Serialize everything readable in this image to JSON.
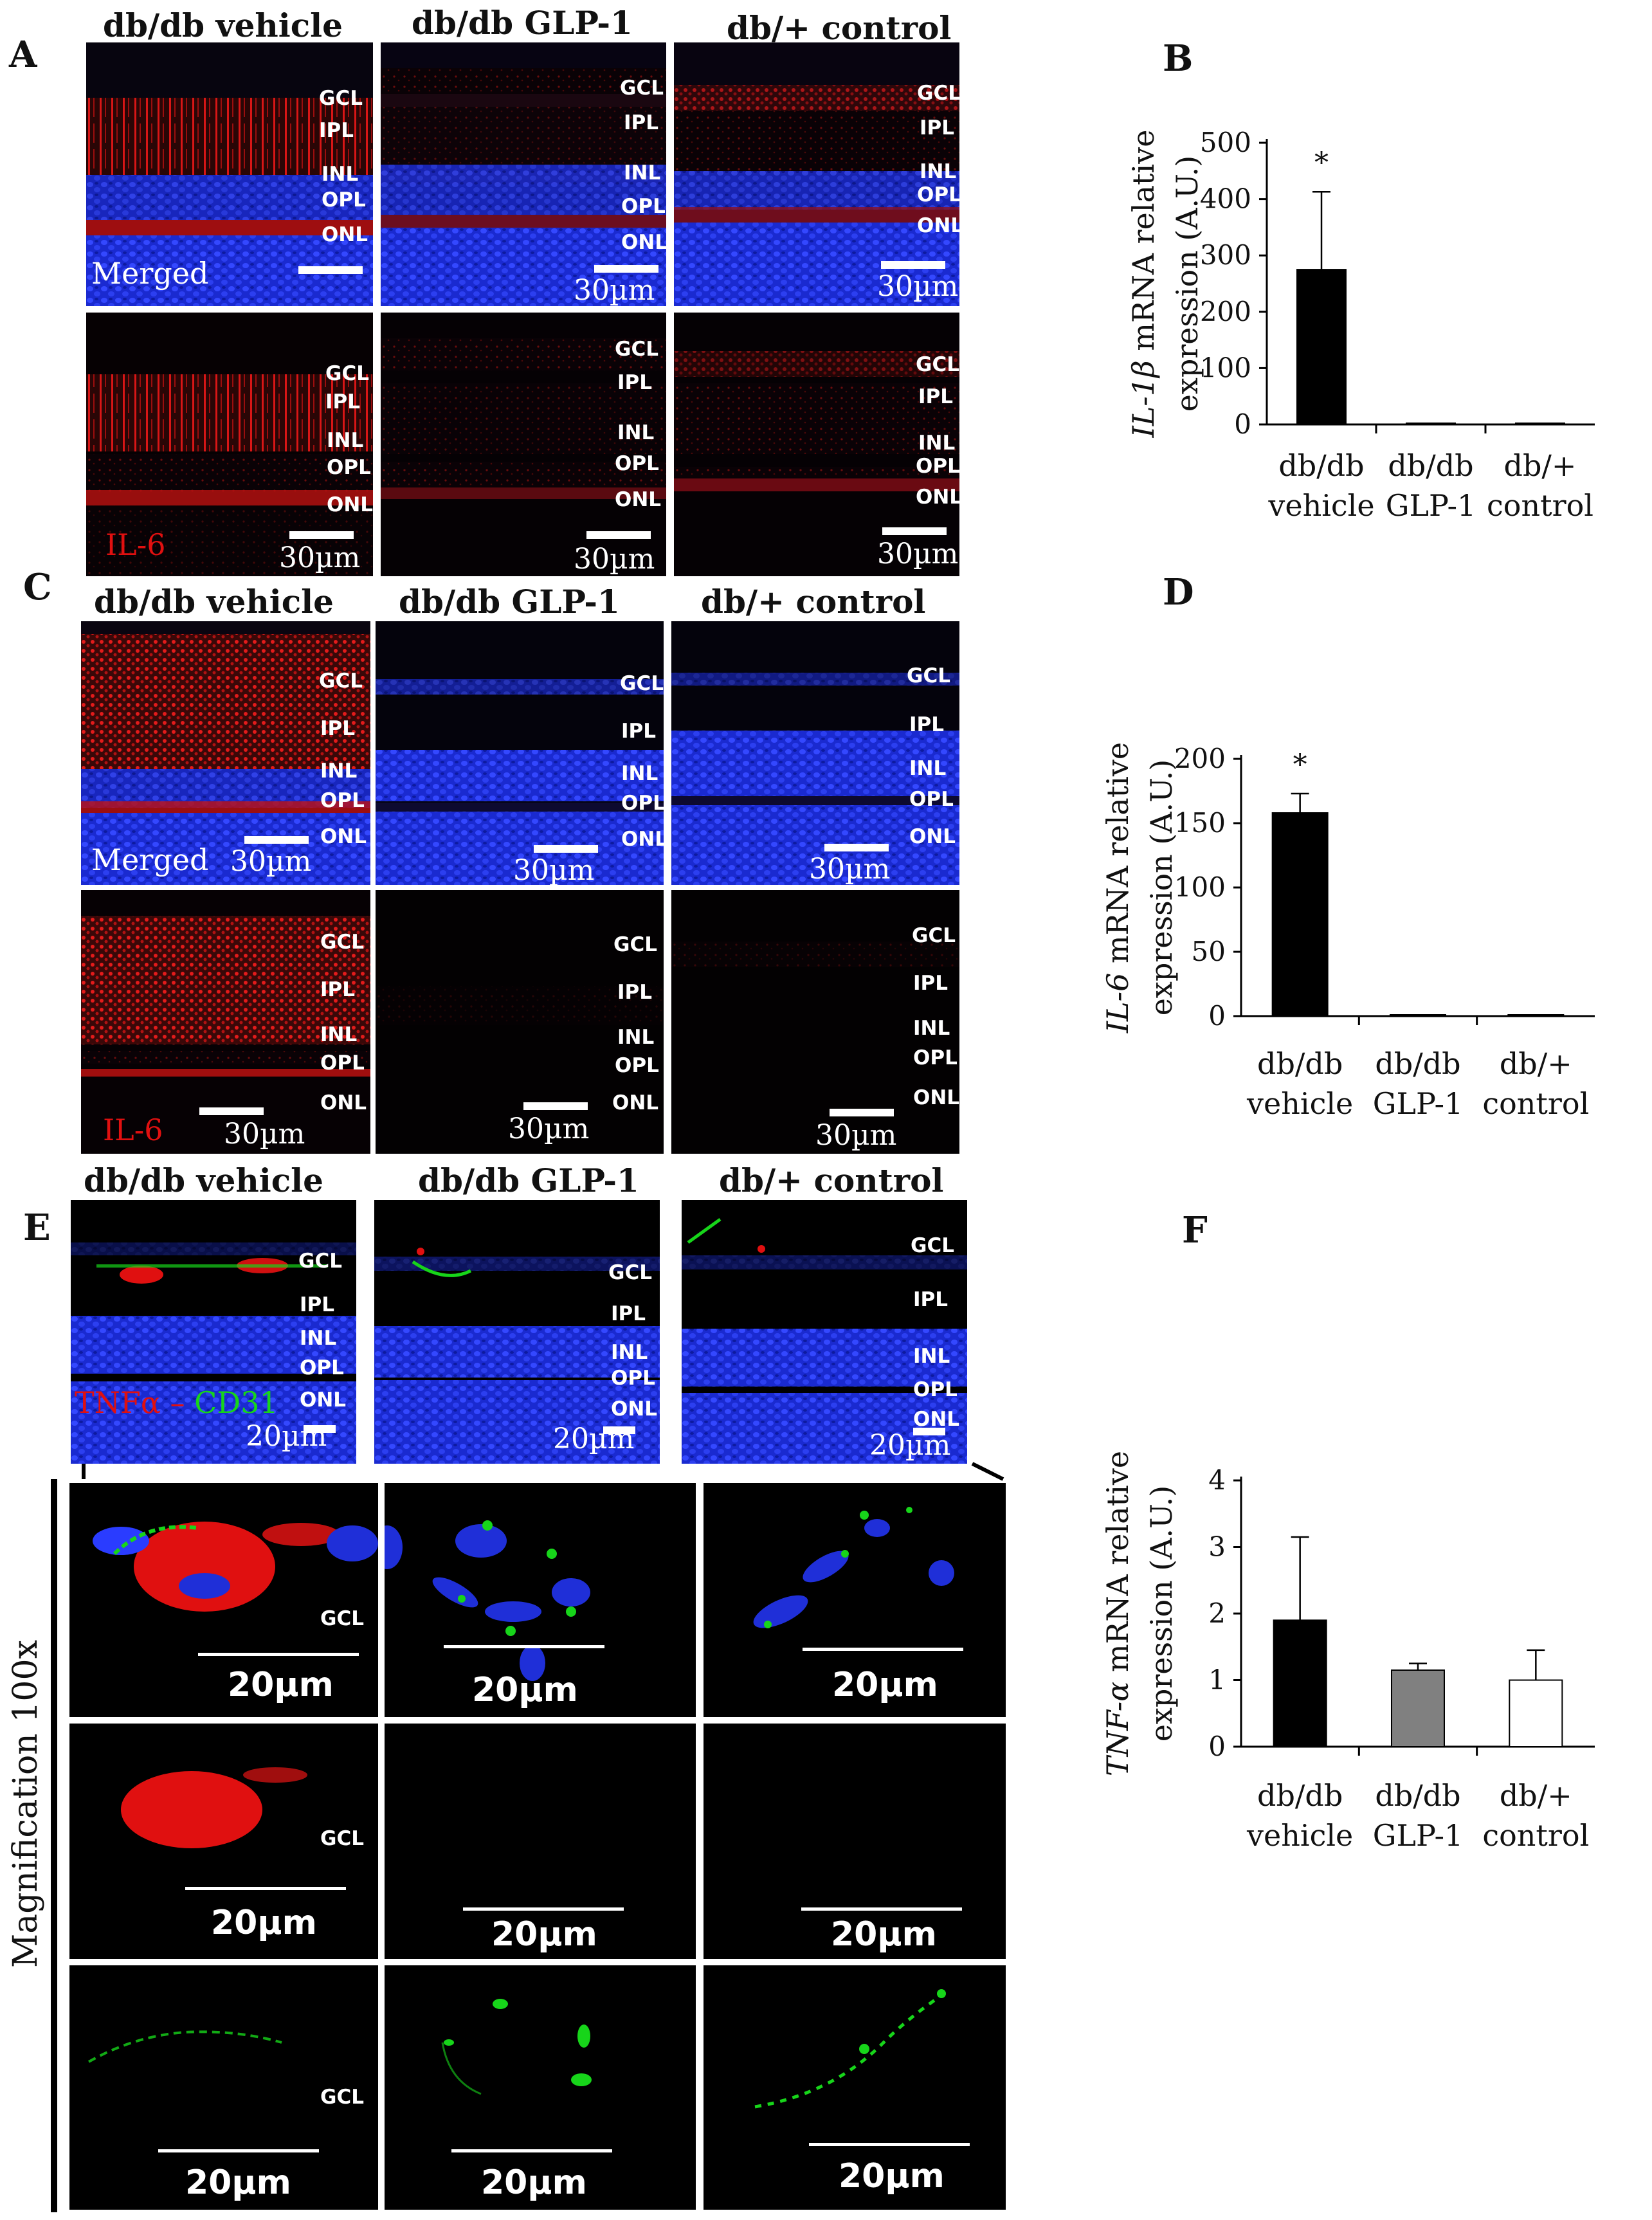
{
  "panels": {
    "A": "A",
    "B": "B",
    "C": "C",
    "D": "D",
    "E": "E",
    "F": "F"
  },
  "columns": {
    "vehicle": "db/db vehicle",
    "glp1": "db/db GLP-1",
    "control": "db/+ control"
  },
  "layers": {
    "gcl": "GCL",
    "ipl": "IPL",
    "inl": "INL",
    "opl": "OPL",
    "onl": "ONL"
  },
  "stain": {
    "merged": "Merged",
    "il6": "IL-6",
    "tnfa": "TNFα",
    "dash": " – ",
    "cd31": "CD31"
  },
  "scale": {
    "s30": "30µm",
    "s20": "20µm"
  },
  "magnification": "Magnification 100x",
  "colors": {
    "red": "#e01010",
    "green": "#17d51a",
    "blue": "#1f2fd8",
    "bar_vehicle": "#000000",
    "bar_glp1": "#808080",
    "bar_control": "#ffffff"
  },
  "chart_data": [
    {
      "id": "B",
      "type": "bar",
      "ylabel_gene": "IL-1β",
      "ylabel_rest": " mRNA relative",
      "ylabel_line2": "expression (A.U.)",
      "categories": [
        [
          "db/db",
          "vehicle"
        ],
        [
          "db/db",
          "GLP-1"
        ],
        [
          "db/+",
          "control"
        ]
      ],
      "values": [
        275,
        1,
        1
      ],
      "errors": [
        138,
        0,
        0
      ],
      "significance": [
        "*",
        "",
        ""
      ],
      "yticks": [
        0,
        100,
        200,
        300,
        400,
        500
      ],
      "ylim": [
        0,
        500
      ]
    },
    {
      "id": "D",
      "type": "bar",
      "ylabel_gene": "IL-6",
      "ylabel_rest": " mRNA relative",
      "ylabel_line2": "expression (A.U.)",
      "categories": [
        [
          "db/db",
          "vehicle"
        ],
        [
          "db/db",
          "GLP-1"
        ],
        [
          "db/+",
          "control"
        ]
      ],
      "values": [
        158,
        1,
        1
      ],
      "errors": [
        15,
        0,
        0
      ],
      "significance": [
        "*",
        "",
        ""
      ],
      "yticks": [
        0,
        50,
        100,
        150,
        200
      ],
      "ylim": [
        0,
        200
      ]
    },
    {
      "id": "F",
      "type": "bar",
      "ylabel_gene": "TNF-α",
      "ylabel_rest": " mRNA relative",
      "ylabel_line2": "expression (A.U.)",
      "categories": [
        [
          "db/db",
          "vehicle"
        ],
        [
          "db/db",
          "GLP-1"
        ],
        [
          "db/+",
          "control"
        ]
      ],
      "values": [
        1.9,
        1.15,
        1.0
      ],
      "errors": [
        1.25,
        0.1,
        0.45
      ],
      "significance": [
        "",
        "",
        ""
      ],
      "yticks": [
        0,
        1,
        2,
        3,
        4
      ],
      "ylim": [
        0,
        4
      ]
    }
  ]
}
